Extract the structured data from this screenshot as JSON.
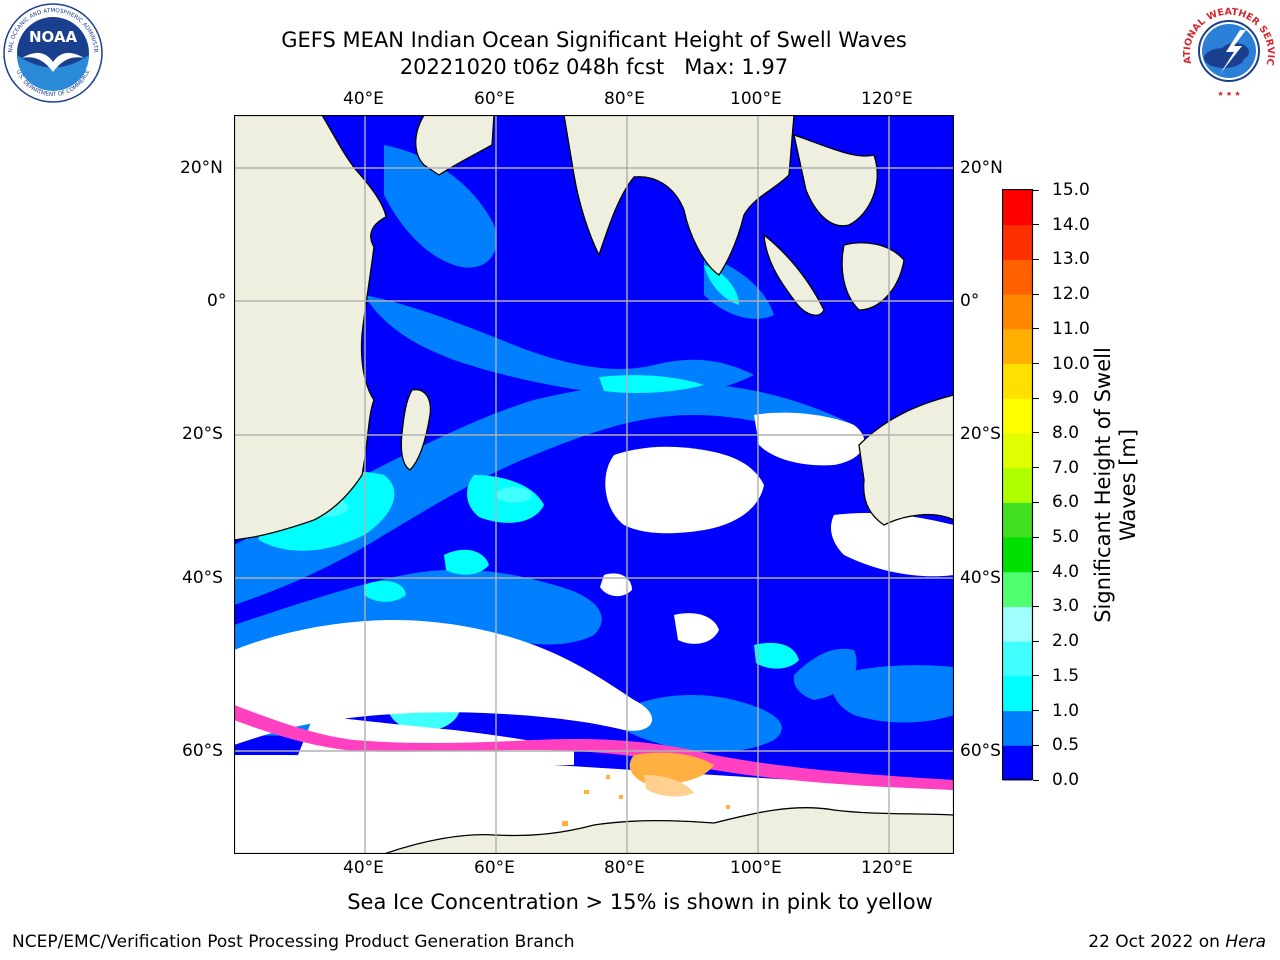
{
  "title": {
    "line1": "GEFS MEAN Indian Ocean Significant Height of Swell Waves",
    "line2": "20221020 t06z 048h fcst   Max: 1.97"
  },
  "map": {
    "lon_ticks": [
      "40°E",
      "60°E",
      "80°E",
      "100°E",
      "120°E"
    ],
    "lat_ticks": [
      "20°N",
      "0°",
      "20°S",
      "40°S",
      "60°S"
    ],
    "extent": {
      "lon": [
        20,
        130
      ],
      "lat": [
        -73,
        28
      ]
    },
    "grid": true,
    "colors": {
      "land": "#efefdf",
      "ocean_low": "#0000ff",
      "ocean_mid": "#0080ff",
      "ocean_high": "#00ffff",
      "ice_pink": "#ff40c0",
      "ice_orange": "#ffb040",
      "ice_white": "#ffffff"
    }
  },
  "colorbar": {
    "label_line1": "Significant Height of Swell",
    "label_line2": "Waves [m]",
    "ticks": [
      "0.0",
      "0.5",
      "1.0",
      "1.5",
      "2.0",
      "3.0",
      "4.0",
      "5.0",
      "6.0",
      "7.0",
      "8.0",
      "9.0",
      "10.0",
      "11.0",
      "12.0",
      "13.0",
      "14.0",
      "15.0"
    ],
    "colors": [
      "#0000ff",
      "#0080ff",
      "#00ffff",
      "#40ffff",
      "#a0ffff",
      "#50ff70",
      "#00e000",
      "#40e020",
      "#b0ff00",
      "#e0ff00",
      "#ffff00",
      "#ffe000",
      "#ffb000",
      "#ff8800",
      "#ff6000",
      "#ff3000",
      "#ff0000"
    ]
  },
  "footer": {
    "caption": "Sea Ice Concentration > 15% is shown in pink to yellow",
    "left": "NCEP/EMC/Verification Post Processing Product Generation Branch",
    "right_date": "22 Oct 2022 on ",
    "right_host": "Hera"
  },
  "logos": {
    "noaa": {
      "text": "NOAA",
      "ring_top": "NATIONAL OCEANIC AND ATMOSPHERIC ADMINISTRATION",
      "ring_bottom": "U.S. DEPARTMENT OF COMMERCE"
    },
    "nws": {
      "ring": "NATIONAL WEATHER SERVICE"
    }
  }
}
